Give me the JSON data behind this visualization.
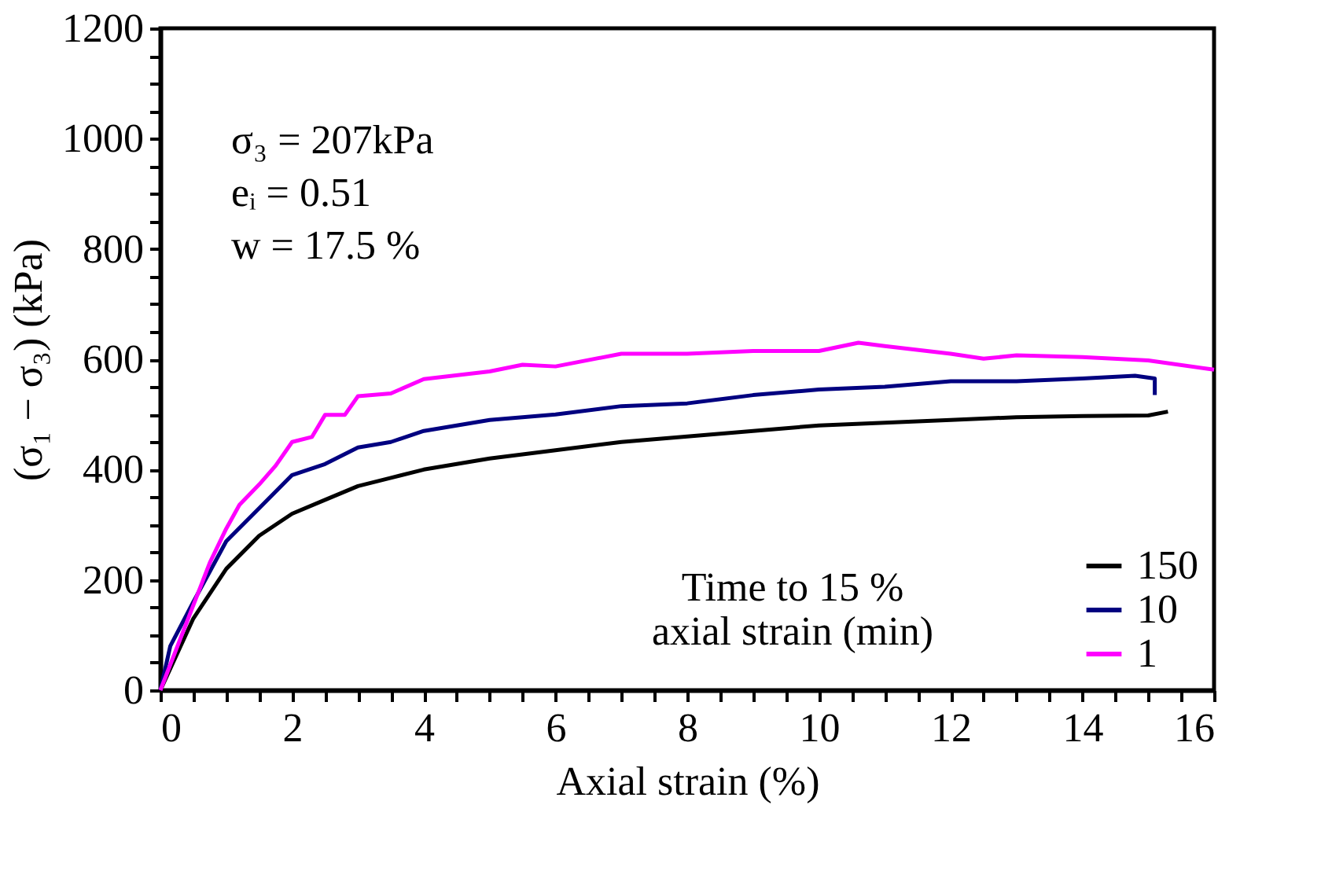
{
  "chart_data": {
    "type": "line",
    "xlabel": "Axial strain (%)",
    "ylabel": "(σ₁ − σ₃) (kPa)",
    "legend_title": "Time to 15 % axial strain (min)",
    "legend": "bottom right",
    "grid": false,
    "marker": "none",
    "line_style": "solid",
    "xlim": [
      0,
      16
    ],
    "ylim": [
      0,
      1200
    ],
    "xticks": [
      0,
      {
        "value": 0.5,
        "label": null
      },
      2,
      {
        "value": 1,
        "label": null
      },
      {
        "value": 1.5,
        "label": null
      },
      {
        "value": 2.5,
        "label": null
      },
      {
        "value": 3,
        "label": null
      },
      {
        "value": 3.5,
        "label": null
      },
      4,
      {
        "value": 4.5,
        "label": null
      },
      {
        "value": 5,
        "label": null
      },
      {
        "value": 5.5,
        "label": null
      },
      6,
      {
        "value": 6.5,
        "label": null
      },
      {
        "value": 7,
        "label": null
      },
      {
        "value": 7.5,
        "label": null
      },
      8,
      {
        "value": 8.5,
        "label": null
      },
      {
        "value": 9,
        "label": null
      },
      {
        "value": 9.5,
        "label": null
      },
      10,
      {
        "value": 10.5,
        "label": null
      },
      {
        "value": 11,
        "label": null
      },
      {
        "value": 11.5,
        "label": null
      },
      12,
      {
        "value": 12.5,
        "label": null
      },
      {
        "value": 13,
        "label": null
      },
      {
        "value": 13.5,
        "label": null
      },
      14,
      {
        "value": 14.5,
        "label": null
      },
      {
        "value": 15,
        "label": null
      },
      {
        "value": 15.5,
        "label": null
      },
      16
    ],
    "yticks": [
      0,
      {
        "value": 50,
        "label": null
      },
      {
        "value": 100,
        "label": null
      },
      {
        "value": 150,
        "label": null
      },
      200,
      {
        "value": 250,
        "label": null
      },
      {
        "value": 300,
        "label": null
      },
      {
        "value": 350,
        "label": null
      },
      400,
      {
        "value": 450,
        "label": null
      },
      {
        "value": 500,
        "label": null
      },
      {
        "value": 550,
        "label": null
      },
      600,
      {
        "value": 650,
        "label": null
      },
      {
        "value": 700,
        "label": null
      },
      {
        "value": 750,
        "label": null
      },
      800,
      {
        "value": 850,
        "label": null
      },
      {
        "value": 900,
        "label": null
      },
      {
        "value": 950,
        "label": null
      },
      1000,
      {
        "value": 1050,
        "label": null
      },
      {
        "value": 1100,
        "label": null
      },
      {
        "value": 1150,
        "label": null
      },
      1200
    ],
    "annotations": [
      "σ₃ = 207kPa",
      "eᵢ = 0.51",
      "w = 17.5 %"
    ],
    "series": [
      {
        "name": "150",
        "color": "#000000",
        "x": [
          0,
          0.5,
          1,
          1.5,
          2,
          2.5,
          3,
          3.5,
          4,
          5,
          6,
          7,
          8,
          9,
          10,
          11,
          12,
          13,
          14,
          15,
          15.3
        ],
        "values": [
          0,
          130,
          220,
          280,
          320,
          345,
          370,
          385,
          400,
          420,
          435,
          450,
          460,
          470,
          480,
          485,
          490,
          495,
          497,
          498,
          505
        ]
      },
      {
        "name": "10",
        "color": "#000080",
        "x": [
          0,
          0.15,
          0.5,
          1,
          1.5,
          2,
          2.5,
          3,
          3.5,
          4,
          4.5,
          5,
          6,
          7,
          8,
          9,
          10,
          11,
          12,
          13,
          14,
          14.8,
          15.1,
          15.1
        ],
        "values": [
          0,
          80,
          160,
          270,
          330,
          390,
          410,
          440,
          450,
          470,
          480,
          490,
          500,
          515,
          520,
          535,
          545,
          550,
          560,
          560,
          565,
          570,
          565,
          535
        ]
      },
      {
        "name": "1",
        "color": "#ff00ff",
        "x": [
          0,
          0.75,
          1,
          1.2,
          1.5,
          1.75,
          2,
          2.3,
          2.5,
          2.8,
          3,
          3.5,
          4,
          5,
          5.5,
          6,
          7,
          8,
          9,
          10,
          10.6,
          11,
          12,
          12.5,
          13,
          14,
          15,
          16
        ],
        "values": [
          0,
          231,
          293,
          336,
          373,
          407,
          450,
          459,
          499,
          499,
          533,
          538,
          564,
          578,
          590,
          587,
          610,
          610,
          615,
          615,
          630,
          624,
          610,
          601,
          607,
          604,
          598,
          581
        ]
      }
    ]
  }
}
